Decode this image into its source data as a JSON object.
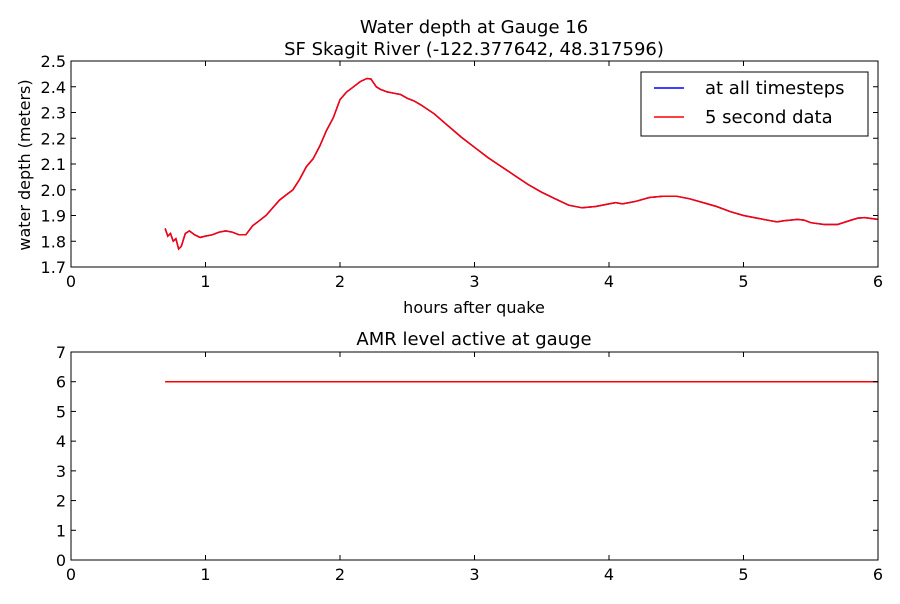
{
  "colors": {
    "all_timesteps": "#0000ff",
    "five_second": "#ff0000",
    "axes": "#000000",
    "background": "#ffffff"
  },
  "chart_data": [
    {
      "type": "line",
      "title": "Water depth at Gauge 16",
      "subtitle": "SF Skagit River  (-122.377642, 48.317596)",
      "xlabel": "hours after quake",
      "ylabel": "water depth (meters)",
      "xlim": [
        0,
        6
      ],
      "ylim": [
        1.7,
        2.5
      ],
      "xticks": [
        "0",
        "1",
        "2",
        "3",
        "4",
        "5",
        "6"
      ],
      "yticks": [
        "1.7",
        "1.8",
        "1.9",
        "2.0",
        "2.1",
        "2.2",
        "2.3",
        "2.4",
        "2.5"
      ],
      "grid": false,
      "legend": "top-right",
      "x": [
        0.7,
        0.72,
        0.74,
        0.76,
        0.78,
        0.8,
        0.82,
        0.85,
        0.88,
        0.92,
        0.96,
        1.0,
        1.05,
        1.1,
        1.15,
        1.2,
        1.25,
        1.3,
        1.35,
        1.4,
        1.45,
        1.5,
        1.55,
        1.6,
        1.65,
        1.7,
        1.75,
        1.8,
        1.85,
        1.9,
        1.95,
        2.0,
        2.05,
        2.1,
        2.15,
        2.2,
        2.23,
        2.27,
        2.3,
        2.35,
        2.4,
        2.45,
        2.5,
        2.55,
        2.6,
        2.7,
        2.8,
        2.9,
        3.0,
        3.1,
        3.2,
        3.3,
        3.4,
        3.5,
        3.6,
        3.7,
        3.8,
        3.9,
        4.0,
        4.05,
        4.1,
        4.15,
        4.2,
        4.3,
        4.4,
        4.5,
        4.6,
        4.7,
        4.8,
        4.9,
        5.0,
        5.1,
        5.2,
        5.25,
        5.3,
        5.35,
        5.4,
        5.45,
        5.5,
        5.6,
        5.7,
        5.8,
        5.85,
        5.9,
        6.0
      ],
      "series": [
        {
          "name": "at all timesteps",
          "values": [
            1.85,
            1.82,
            1.83,
            1.8,
            1.81,
            1.77,
            1.78,
            1.83,
            1.84,
            1.825,
            1.815,
            1.82,
            1.825,
            1.835,
            1.84,
            1.835,
            1.825,
            1.825,
            1.86,
            1.88,
            1.9,
            1.93,
            1.96,
            1.98,
            2.0,
            2.04,
            2.09,
            2.12,
            2.17,
            2.23,
            2.28,
            2.35,
            2.38,
            2.4,
            2.42,
            2.432,
            2.43,
            2.4,
            2.39,
            2.38,
            2.375,
            2.37,
            2.355,
            2.345,
            2.33,
            2.295,
            2.25,
            2.205,
            2.165,
            2.125,
            2.09,
            2.055,
            2.02,
            1.99,
            1.965,
            1.94,
            1.93,
            1.935,
            1.945,
            1.95,
            1.945,
            1.95,
            1.955,
            1.97,
            1.975,
            1.975,
            1.965,
            1.95,
            1.935,
            1.915,
            1.9,
            1.89,
            1.88,
            1.875,
            1.88,
            1.882,
            1.885,
            1.882,
            1.872,
            1.865,
            1.865,
            1.882,
            1.89,
            1.892,
            1.885
          ]
        },
        {
          "name": "5 second data",
          "values": [
            1.85,
            1.82,
            1.83,
            1.8,
            1.81,
            1.77,
            1.78,
            1.83,
            1.84,
            1.825,
            1.815,
            1.82,
            1.825,
            1.835,
            1.84,
            1.835,
            1.825,
            1.825,
            1.86,
            1.88,
            1.9,
            1.93,
            1.96,
            1.98,
            2.0,
            2.04,
            2.09,
            2.12,
            2.17,
            2.23,
            2.28,
            2.35,
            2.38,
            2.4,
            2.42,
            2.432,
            2.43,
            2.4,
            2.39,
            2.38,
            2.375,
            2.37,
            2.355,
            2.345,
            2.33,
            2.295,
            2.25,
            2.205,
            2.165,
            2.125,
            2.09,
            2.055,
            2.02,
            1.99,
            1.965,
            1.94,
            1.93,
            1.935,
            1.945,
            1.95,
            1.945,
            1.95,
            1.955,
            1.97,
            1.975,
            1.975,
            1.965,
            1.95,
            1.935,
            1.915,
            1.9,
            1.89,
            1.88,
            1.875,
            1.88,
            1.882,
            1.885,
            1.882,
            1.872,
            1.865,
            1.865,
            1.882,
            1.89,
            1.892,
            1.885
          ]
        }
      ]
    },
    {
      "type": "line",
      "title": "AMR level active at gauge",
      "xlabel": "",
      "ylabel": "",
      "xlim": [
        0,
        6
      ],
      "ylim": [
        0,
        7
      ],
      "xticks": [
        "0",
        "1",
        "2",
        "3",
        "4",
        "5",
        "6"
      ],
      "yticks": [
        "0",
        "1",
        "2",
        "3",
        "4",
        "5",
        "6",
        "7"
      ],
      "grid": false,
      "x": [
        0.7,
        6.0
      ],
      "series": [
        {
          "values": [
            6,
            6
          ]
        }
      ]
    }
  ]
}
